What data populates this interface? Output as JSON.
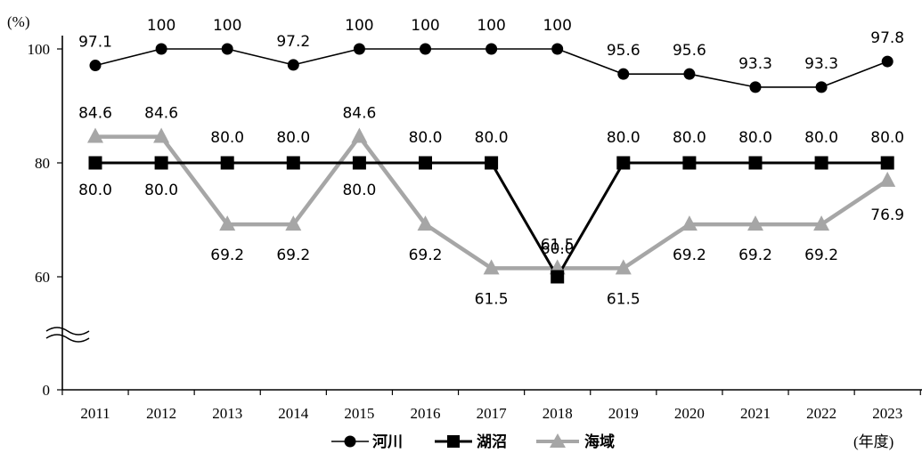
{
  "chart_data": {
    "type": "line",
    "ylabel": "(%)",
    "xlabel": "(年度)",
    "categories": [
      "2011",
      "2012",
      "2013",
      "2014",
      "2015",
      "2016",
      "2017",
      "2018",
      "2019",
      "2020",
      "2021",
      "2022",
      "2023"
    ],
    "y_ticks": [
      "0",
      "60",
      "80",
      "100"
    ],
    "y_axis_break": true,
    "ylim": [
      0,
      100
    ],
    "grid": false,
    "legend_position": "bottom",
    "series": [
      {
        "name": "河川",
        "marker": "circle",
        "color": "#000000",
        "values": [
          97.1,
          100,
          100,
          97.2,
          100,
          100,
          100,
          100,
          95.6,
          95.6,
          93.3,
          93.3,
          97.8
        ],
        "labels": [
          "97.1",
          "100",
          "100",
          "97.2",
          "100",
          "100",
          "100",
          "100",
          "95.6",
          "95.6",
          "93.3",
          "93.3",
          "97.8"
        ]
      },
      {
        "name": "湖沼",
        "marker": "square",
        "color": "#000000",
        "values": [
          80.0,
          80.0,
          80.0,
          80.0,
          80.0,
          80.0,
          80.0,
          60.0,
          80.0,
          80.0,
          80.0,
          80.0,
          80.0
        ],
        "labels": [
          "80.0",
          "80.0",
          "80.0",
          "80.0",
          "80.0",
          "80.0",
          "80.0",
          "60.0",
          "80.0",
          "80.0",
          "80.0",
          "80.0",
          "80.0"
        ]
      },
      {
        "name": "海域",
        "marker": "triangle",
        "color": "#a6a6a6",
        "values": [
          84.6,
          84.6,
          69.2,
          69.2,
          84.6,
          69.2,
          61.5,
          61.5,
          61.5,
          69.2,
          69.2,
          69.2,
          76.9
        ],
        "labels": [
          "84.6",
          "84.6",
          "69.2",
          "69.2",
          "84.6",
          "69.2",
          "61.5",
          "61.5",
          "61.5",
          "69.2",
          "69.2",
          "69.2",
          "76.9"
        ]
      }
    ]
  }
}
